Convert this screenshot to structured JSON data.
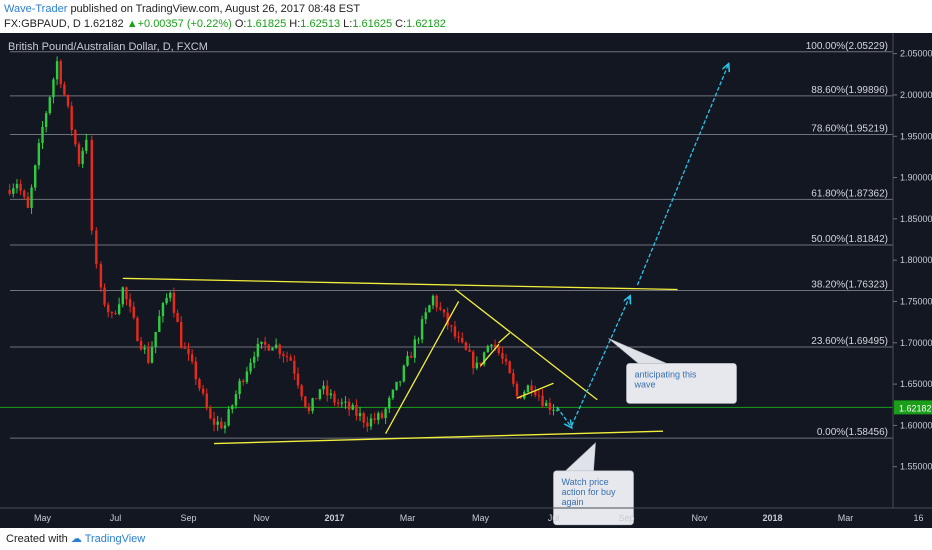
{
  "header": {
    "author": "Wave-Trader",
    "published_text": "published on TradingView.com, August 26, 2017 08:48 EST",
    "symbol_interval": "FX:GBPAUD, D",
    "price": "1.62182",
    "change": "+0.00357 (+0.22%)",
    "o_label": "O:",
    "o_value": "1.61825",
    "h_label": "H:",
    "h_value": "1.62513",
    "l_label": "L:",
    "l_value": "1.61625",
    "c_label": "C:",
    "c_value": "1.62182"
  },
  "footer": {
    "created_with": "Created with",
    "brand": "TradingView"
  },
  "colors": {
    "background": "#131722",
    "up_candle": "#2ecc40",
    "down_candle": "#e8291c",
    "trendline": "#f2ee3a",
    "arrow": "#29c4e8",
    "fib_line": "#6f727a",
    "current_price_line": "#1a9e1a",
    "price_badge": "#1a9e1a"
  },
  "chart_data": {
    "type": "candlestick",
    "title": "British Pound/Australian Dollar, D, FXCM",
    "ylim": [
      1.5,
      2.075
    ],
    "y_ticks": [
      "2.05000",
      "2.00000",
      "1.95000",
      "1.90000",
      "1.85000",
      "1.80000",
      "1.75000",
      "1.70000",
      "1.65000",
      "1.60000",
      "1.55000"
    ],
    "x_ticks": [
      "May",
      "Jul",
      "Sep",
      "Nov",
      "2017",
      "Mar",
      "May",
      "Jul",
      "Sep",
      "Nov",
      "2018",
      "Mar",
      "16"
    ],
    "current_price": "1.62182",
    "close_path": [
      {
        "x": 0,
        "y": 1.885
      },
      {
        "x": 0.3,
        "y": 1.895
      },
      {
        "x": 0.6,
        "y": 1.86
      },
      {
        "x": 1.0,
        "y": 1.96
      },
      {
        "x": 1.4,
        "y": 2.04
      },
      {
        "x": 1.7,
        "y": 1.98
      },
      {
        "x": 2.0,
        "y": 1.92
      },
      {
        "x": 2.2,
        "y": 1.95
      },
      {
        "x": 2.35,
        "y": 1.83
      },
      {
        "x": 2.6,
        "y": 1.76
      },
      {
        "x": 2.9,
        "y": 1.73
      },
      {
        "x": 3.2,
        "y": 1.765
      },
      {
        "x": 3.6,
        "y": 1.71
      },
      {
        "x": 3.9,
        "y": 1.68
      },
      {
        "x": 4.2,
        "y": 1.73
      },
      {
        "x": 4.5,
        "y": 1.765
      },
      {
        "x": 4.8,
        "y": 1.7
      },
      {
        "x": 5.2,
        "y": 1.66
      },
      {
        "x": 5.6,
        "y": 1.605
      },
      {
        "x": 6.0,
        "y": 1.6
      },
      {
        "x": 6.4,
        "y": 1.65
      },
      {
        "x": 6.8,
        "y": 1.69
      },
      {
        "x": 7.3,
        "y": 1.7
      },
      {
        "x": 7.8,
        "y": 1.68
      },
      {
        "x": 8.3,
        "y": 1.615
      },
      {
        "x": 8.6,
        "y": 1.645
      },
      {
        "x": 9.0,
        "y": 1.63
      },
      {
        "x": 9.4,
        "y": 1.62
      },
      {
        "x": 9.9,
        "y": 1.605
      },
      {
        "x": 10.3,
        "y": 1.61
      },
      {
        "x": 10.8,
        "y": 1.655
      },
      {
        "x": 11.3,
        "y": 1.71
      },
      {
        "x": 11.7,
        "y": 1.755
      },
      {
        "x": 12.0,
        "y": 1.73
      },
      {
        "x": 12.4,
        "y": 1.7
      },
      {
        "x": 12.9,
        "y": 1.67
      },
      {
        "x": 13.3,
        "y": 1.705
      },
      {
        "x": 13.7,
        "y": 1.67
      },
      {
        "x": 14.0,
        "y": 1.635
      },
      {
        "x": 14.4,
        "y": 1.65
      },
      {
        "x": 14.8,
        "y": 1.625
      },
      {
        "x": 15.1,
        "y": 1.6218
      }
    ],
    "fib_levels": [
      {
        "label": "100.00%(2.05229)",
        "value": 2.05229
      },
      {
        "label": "88.60%(1.99896)",
        "value": 1.99896
      },
      {
        "label": "78.60%(1.95219)",
        "value": 1.95219
      },
      {
        "label": "61.80%(1.87362)",
        "value": 1.87362
      },
      {
        "label": "50.00%(1.81842)",
        "value": 1.81842
      },
      {
        "label": "38.20%(1.76323)",
        "value": 1.76323
      },
      {
        "label": "23.60%(1.69495)",
        "value": 1.69495
      },
      {
        "label": "0.00%(1.58456)",
        "value": 1.58456
      }
    ],
    "trendlines": [
      {
        "x1": 3.2,
        "y1": 1.778,
        "x2": 18.4,
        "y2": 1.7645
      },
      {
        "x1": 5.7,
        "y1": 1.578,
        "x2": 18.0,
        "y2": 1.593
      },
      {
        "x1": 10.4,
        "y1": 1.59,
        "x2": 12.4,
        "y2": 1.75
      },
      {
        "x1": 12.3,
        "y1": 1.765,
        "x2": 16.2,
        "y2": 1.631
      },
      {
        "x1": 13.0,
        "y1": 1.672,
        "x2": 13.5,
        "y2": 1.698
      },
      {
        "x1": 13.5,
        "y1": 1.7,
        "x2": 13.8,
        "y2": 1.712
      },
      {
        "x1": 14.0,
        "y1": 1.633,
        "x2": 15.0,
        "y2": 1.651
      }
    ],
    "arrows": [
      {
        "x1": 15.1,
        "y1": 1.622,
        "x2": 15.5,
        "y2": 1.597,
        "dashed": true
      },
      {
        "x1": 15.5,
        "y1": 1.6,
        "x2": 17.1,
        "y2": 1.757,
        "dashed": true
      },
      {
        "x1": 17.3,
        "y1": 1.77,
        "x2": 19.8,
        "y2": 2.038,
        "dashed": true
      }
    ],
    "annotations": [
      {
        "text_lines": [
          "anticipating this",
          "wave"
        ],
        "x": 17.0,
        "y": 1.675
      },
      {
        "text_lines": [
          "Watch price",
          "action for buy",
          "again"
        ],
        "x": 15.0,
        "y": 1.545
      }
    ]
  }
}
